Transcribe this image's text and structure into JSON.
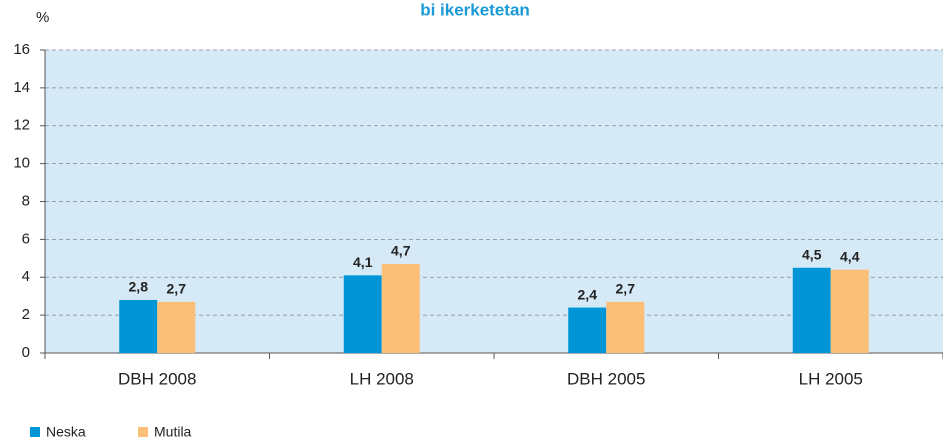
{
  "chart_data": {
    "type": "bar",
    "title": "bi ikerketetan",
    "y_label": "%",
    "categories": [
      "DBH 2008",
      "LH 2008",
      "DBH 2005",
      "LH 2005"
    ],
    "series": [
      {
        "name": "Neska",
        "color": "#0095d6",
        "values": [
          2.8,
          4.1,
          2.4,
          4.5
        ],
        "value_labels": [
          "2,8",
          "4,1",
          "2,4",
          "4,5"
        ]
      },
      {
        "name": "Mutila",
        "color": "#fbbf77",
        "values": [
          2.7,
          4.7,
          2.7,
          4.4
        ],
        "value_labels": [
          "2,7",
          "4,7",
          "2,7",
          "4,4"
        ]
      }
    ],
    "ylim": [
      0,
      16
    ],
    "yticks": [
      0,
      2,
      4,
      6,
      8,
      10,
      12,
      14,
      16
    ],
    "grid": true,
    "background": "#d6e9f6",
    "legend": "bottom-left"
  }
}
